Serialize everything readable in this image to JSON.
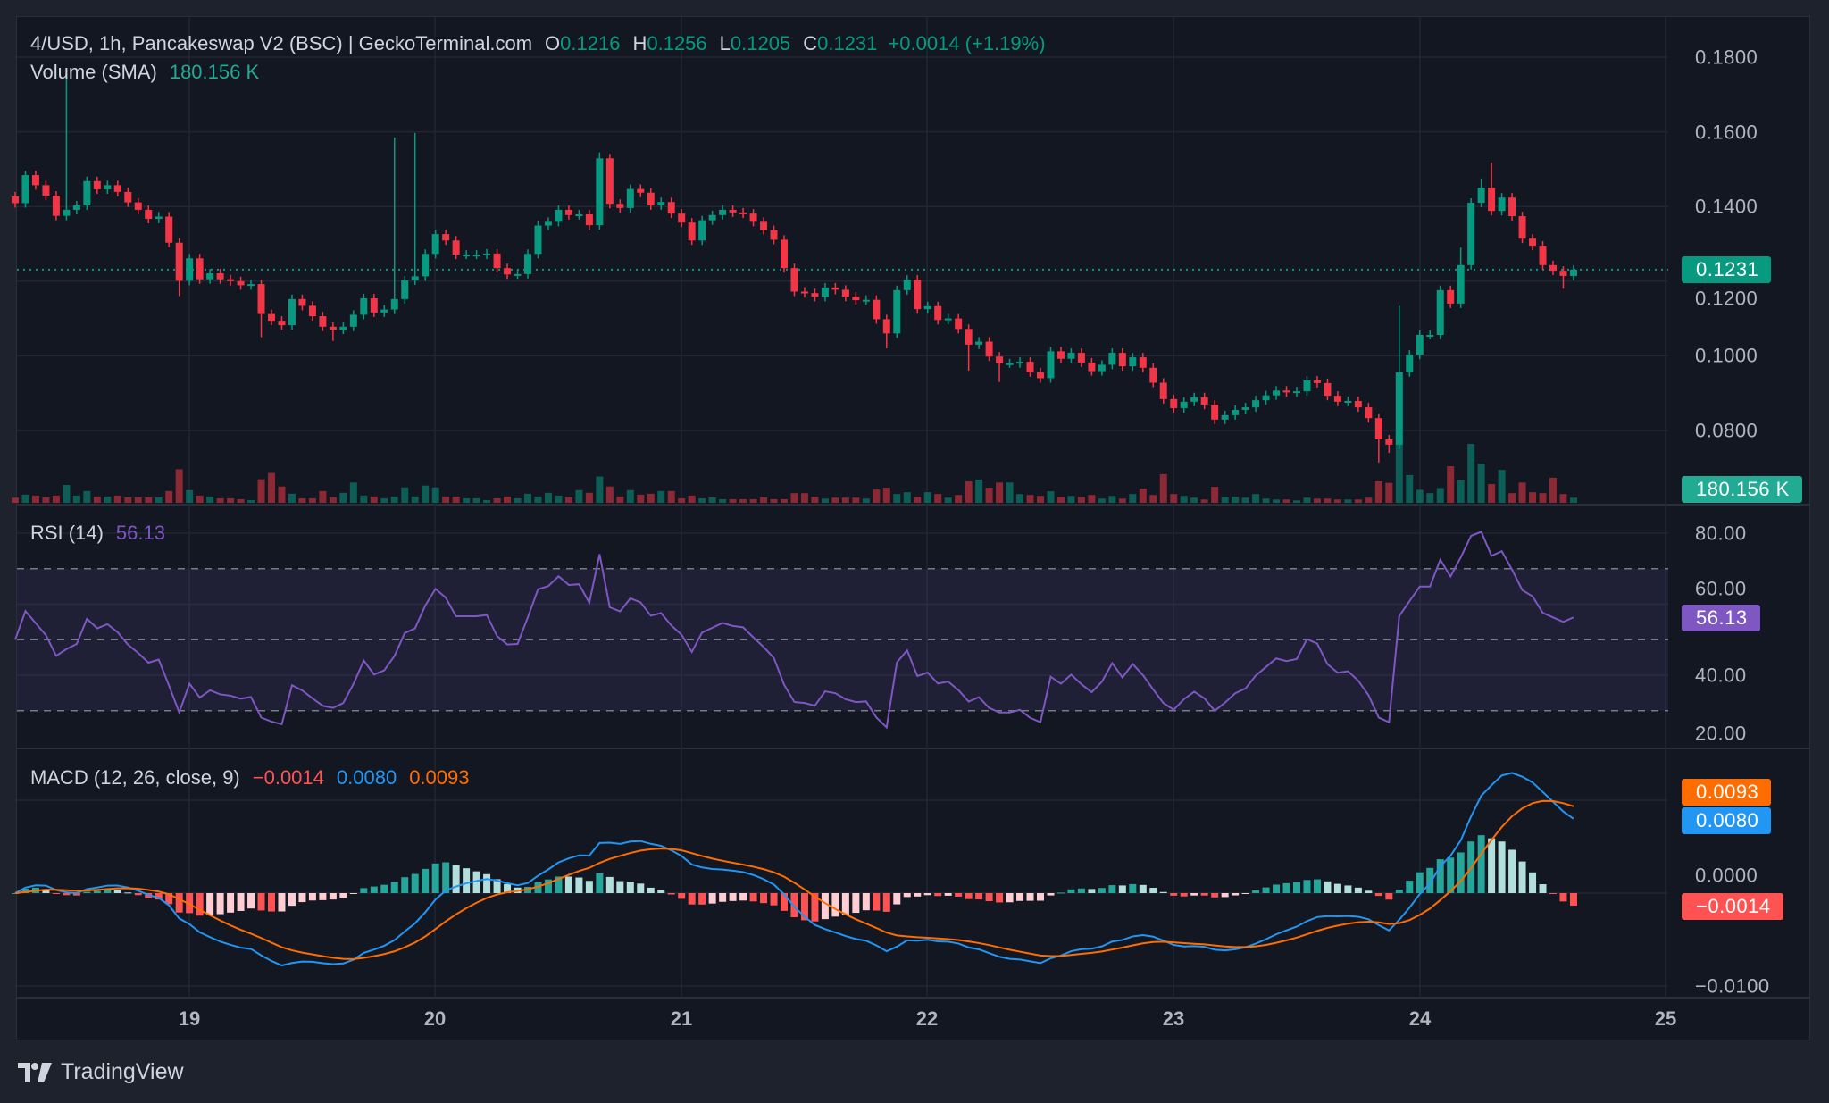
{
  "header": {
    "symbol_line": "4/USD, 1h, Pancakeswap V2 (BSC) | GeckoTerminal.com",
    "o_label": "O",
    "o_value": "0.1216",
    "h_label": "H",
    "h_value": "0.1256",
    "l_label": "L",
    "l_value": "0.1205",
    "c_label": "C",
    "c_value": "0.1231",
    "change": "+0.0014 (+1.19%)",
    "volume_label": "Volume (SMA)",
    "volume_value": "180.156 K"
  },
  "rsi_legend": {
    "label": "RSI (14)",
    "value": "56.13"
  },
  "macd_legend": {
    "label": "MACD (12, 26, close, 9)",
    "hist": "−0.0014",
    "macd": "0.0080",
    "signal": "0.0093"
  },
  "price_axis": [
    "0.1800",
    "0.1600",
    "0.1400",
    "0.1200",
    "0.1000",
    "0.0800"
  ],
  "rsi_axis": [
    "80.00",
    "60.00",
    "40.00",
    "20.00"
  ],
  "macd_axis": [
    "0.0000",
    "−0.0100"
  ],
  "time_axis": [
    "19",
    "20",
    "21",
    "22",
    "23",
    "24",
    "25"
  ],
  "tags": {
    "last_price": "0.1231",
    "volume": "180.156 K",
    "rsi": "56.13",
    "signal": "0.0093",
    "macd": "0.0080",
    "hist": "−0.0014"
  },
  "brand": "TradingView",
  "colors": {
    "up": "#089981",
    "down": "#f23645",
    "rsi": "#7e57c2",
    "macd": "#2196f3",
    "signal": "#ff6d00",
    "hist_red": "#ff5252",
    "volume_tag": "#22ab94"
  },
  "chart_data": {
    "type": "candlestick",
    "interval": "1h",
    "x_range_days": [
      18.3,
      25
    ],
    "price_ylim": [
      0.07,
      0.185
    ],
    "rsi_ylim": [
      20,
      85
    ],
    "rsi_levels": [
      70,
      50,
      30
    ],
    "macd_ylim": [
      -0.011,
      0.011
    ],
    "first_open": 0.1427,
    "close": [
      0.1409,
      0.1484,
      0.1457,
      0.1429,
      0.1375,
      0.1391,
      0.1403,
      0.1468,
      0.1446,
      0.1457,
      0.1439,
      0.1411,
      0.1391,
      0.1367,
      0.1373,
      0.1303,
      0.1201,
      0.1261,
      0.1205,
      0.1221,
      0.1205,
      0.12,
      0.1189,
      0.1192,
      0.1112,
      0.1094,
      0.1082,
      0.1152,
      0.1134,
      0.1106,
      0.1078,
      0.107,
      0.1078,
      0.111,
      0.1154,
      0.1116,
      0.1124,
      0.1152,
      0.1202,
      0.1213,
      0.1273,
      0.1326,
      0.1309,
      0.1271,
      0.1271,
      0.1271,
      0.1274,
      0.1235,
      0.1218,
      0.1219,
      0.1273,
      0.1349,
      0.1359,
      0.1391,
      0.1377,
      0.1379,
      0.135,
      0.1529,
      0.1407,
      0.1396,
      0.1447,
      0.1437,
      0.1403,
      0.1412,
      0.1381,
      0.1357,
      0.1309,
      0.1363,
      0.1377,
      0.1391,
      0.1384,
      0.1381,
      0.1359,
      0.1337,
      0.1311,
      0.1235,
      0.1172,
      0.1168,
      0.1158,
      0.1183,
      0.1177,
      0.1158,
      0.1149,
      0.115,
      0.1098,
      0.106,
      0.1176,
      0.1204,
      0.1125,
      0.1133,
      0.1096,
      0.11,
      0.1072,
      0.103,
      0.1038,
      0.0998,
      0.098,
      0.098,
      0.0984,
      0.0956,
      0.094,
      0.1012,
      0.0992,
      0.1008,
      0.0982,
      0.0959,
      0.0976,
      0.1008,
      0.0972,
      0.0996,
      0.0968,
      0.0928,
      0.0884,
      0.086,
      0.0877,
      0.0889,
      0.0869,
      0.0829,
      0.0841,
      0.0855,
      0.0862,
      0.0881,
      0.0894,
      0.0907,
      0.0902,
      0.0905,
      0.0934,
      0.0927,
      0.0893,
      0.0877,
      0.0879,
      0.0862,
      0.0833,
      0.0776,
      0.0762,
      0.0956,
      0.1003,
      0.1056,
      0.1056,
      0.1176,
      0.114,
      0.1243,
      0.141,
      0.145,
      0.1388,
      0.1424,
      0.1374,
      0.1314,
      0.1295,
      0.1243,
      0.1228,
      0.1214,
      0.1231
    ],
    "highs": {
      "5": 0.176,
      "37": 0.1585,
      "39": 0.1597,
      "57": 0.1545,
      "135": 0.1134,
      "144": 0.1518,
      "143": 0.1475,
      "141": 0.129
    },
    "lows": {
      "16": 0.116,
      "24": 0.105,
      "31": 0.104,
      "85": 0.102,
      "93": 0.096,
      "96": 0.093,
      "133": 0.0714,
      "134": 0.074,
      "151": 0.118
    },
    "volume_k": [
      68,
      108,
      96,
      72,
      96,
      236,
      96,
      156,
      84,
      84,
      96,
      72,
      72,
      72,
      72,
      156,
      444,
      168,
      96,
      84,
      60,
      60,
      48,
      36,
      312,
      396,
      216,
      120,
      60,
      60,
      156,
      72,
      132,
      268,
      96,
      84,
      60,
      84,
      204,
      84,
      228,
      204,
      84,
      84,
      60,
      60,
      36,
      60,
      84,
      60,
      120,
      84,
      132,
      96,
      72,
      168,
      132,
      348,
      216,
      84,
      168,
      108,
      120,
      156,
      156,
      60,
      96,
      60,
      72,
      48,
      48,
      48,
      48,
      72,
      48,
      48,
      128,
      128,
      80,
      56,
      68,
      68,
      68,
      56,
      176,
      200,
      116,
      140,
      80,
      140,
      116,
      68,
      104,
      284,
      308,
      200,
      268,
      268,
      116,
      104,
      92,
      152,
      80,
      92,
      80,
      104,
      56,
      92,
      56,
      116,
      188,
      104,
      380,
      116,
      92,
      68,
      44,
      212,
      80,
      80,
      68,
      116,
      56,
      44,
      44,
      32,
      68,
      56,
      56,
      44,
      44,
      44,
      68,
      284,
      264,
      780,
      368,
      172,
      128,
      196,
      484,
      296,
      780,
      516,
      248,
      436,
      128,
      268,
      140,
      128,
      332,
      116,
      68
    ],
    "indicators": {
      "rsi_period": 14,
      "macd": [
        12,
        26,
        9
      ]
    }
  }
}
